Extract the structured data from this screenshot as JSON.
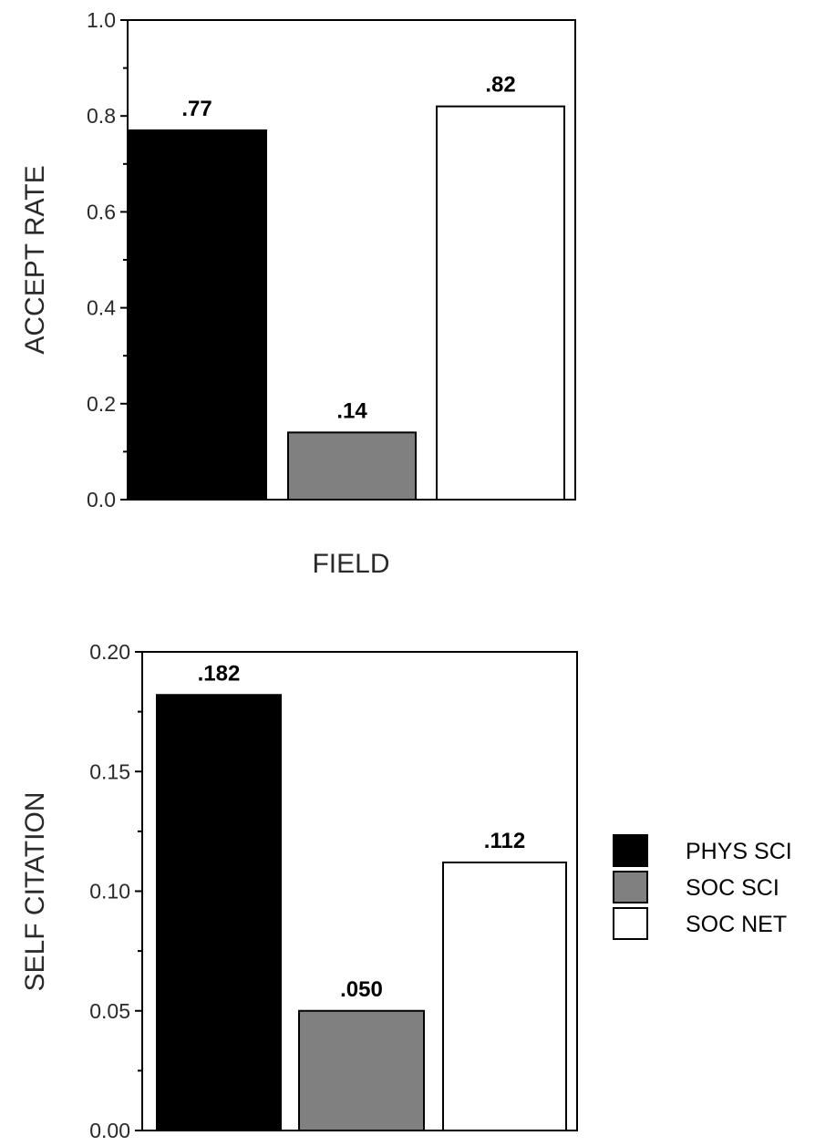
{
  "chart_data": [
    {
      "type": "bar",
      "categories": [
        "PHYS SCI",
        "SOC SCI",
        "SOC NET"
      ],
      "values": [
        0.77,
        0.14,
        0.82
      ],
      "data_labels": [
        ".77",
        ".14",
        ".82"
      ],
      "xlabel": "FIELD",
      "ylabel": "ACCEPT RATE",
      "ylim": [
        0,
        1.0
      ],
      "yticks": [
        "0.0",
        "0.2",
        "0.4",
        "0.6",
        "0.8",
        "1.0"
      ],
      "grid": false
    },
    {
      "type": "bar",
      "categories": [
        "PHYS SCI",
        "SOC SCI",
        "SOC NET"
      ],
      "values": [
        0.182,
        0.05,
        0.112
      ],
      "data_labels": [
        ".182",
        ".050",
        ".112"
      ],
      "xlabel": "",
      "ylabel": "SELF CITATION",
      "ylim": [
        0,
        0.2
      ],
      "yticks": [
        "0.00",
        "0.05",
        "0.10",
        "0.15",
        "0.20"
      ],
      "grid": false
    }
  ],
  "legend": {
    "placement": "right",
    "items": [
      {
        "label": "PHYS SCI",
        "color": "#000000"
      },
      {
        "label": "SOC SCI",
        "color": "#808080"
      },
      {
        "label": "SOC NET",
        "color": "#ffffff"
      }
    ]
  }
}
